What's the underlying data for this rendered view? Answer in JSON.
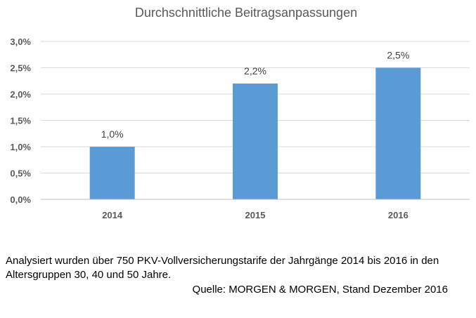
{
  "chart_data": {
    "type": "bar",
    "title": "Durchschnittliche Beitragsanpassungen",
    "categories": [
      "2014",
      "2015",
      "2016"
    ],
    "values": [
      1.0,
      2.2,
      2.5
    ],
    "data_labels": [
      "1,0%",
      "2,2%",
      "2,5%"
    ],
    "ylim": [
      0,
      3.0
    ],
    "yticks": [
      0,
      0.5,
      1.0,
      1.5,
      2.0,
      2.5,
      3.0
    ],
    "ytick_labels": [
      "0,0%",
      "0,5%",
      "1,0%",
      "1,5%",
      "2,0%",
      "2,5%",
      "3,0%"
    ],
    "grid": true,
    "bar_color": "#5b9bd5",
    "grid_color": "#d9d9d9"
  },
  "note": "Analysiert wurden über 750 PKV-Vollversicherungstarife der Jahrgänge 2014 bis 2016 in den Altersgruppen 30, 40 und 50 Jahre.",
  "source": "Quelle: MORGEN & MORGEN, Stand Dezember 2016"
}
